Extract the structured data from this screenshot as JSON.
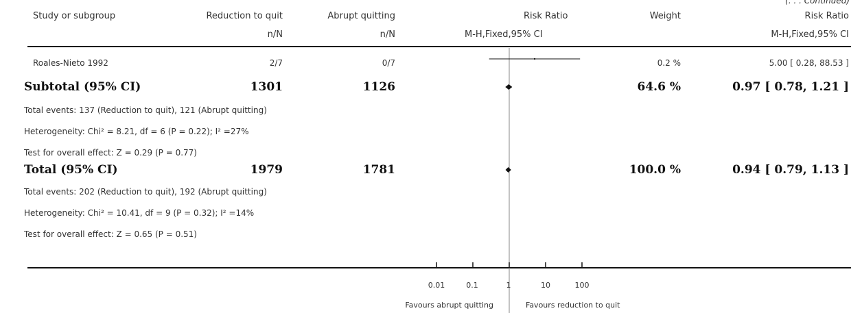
{
  "continued": "(. . . Continued)",
  "header": {
    "study": "Study or subgroup",
    "group1": "Reduction to quit",
    "group2": "Abrupt quitting",
    "risk_ratio": "Risk Ratio",
    "weight": "Weight",
    "risk_ratio2": "Risk Ratio",
    "n1": "n/N",
    "n2": "n/N",
    "method": "M-H,Fixed,95% CI",
    "method2": "M-H,Fixed,95% CI"
  },
  "studies": [
    {
      "name": "Roales-Nieto 1992",
      "g1": "2/7",
      "g2": "0/7",
      "weight": "0.2 %",
      "ci_text": "5.00 [ 0.28, 88.53 ]"
    }
  ],
  "subtotal": {
    "label": "Subtotal (95% CI)",
    "n1": "1301",
    "n2": "1126",
    "weight": "64.6 %",
    "ci_text": "0.97 [ 0.78, 1.21 ]",
    "events": "Total events: 137 (Reduction to quit), 121 (Abrupt quitting)",
    "heterogeneity": "Heterogeneity: Chi² = 8.21, df = 6 (P = 0.22); I² =27%",
    "overall": "Test for overall effect: Z = 0.29 (P = 0.77)"
  },
  "total": {
    "label": "Total (95% CI)",
    "n1": "1979",
    "n2": "1781",
    "weight": "100.0 %",
    "ci_text": "0.94 [ 0.79, 1.13 ]",
    "events": "Total events: 202 (Reduction to quit), 192 (Abrupt quitting)",
    "heterogeneity": "Heterogeneity: Chi² = 10.41, df = 9 (P = 0.32); I² =14%",
    "overall": "Test for overall effect: Z = 0.65 (P = 0.51)"
  },
  "axis": {
    "ticks": [
      "0.01",
      "0.1",
      "1",
      "10",
      "100"
    ],
    "favours_left": "Favours abrupt quitting",
    "favours_right": "Favours reduction to quit"
  },
  "chart_data": {
    "type": "scatter",
    "scale": "log",
    "xlim": [
      0.01,
      100
    ],
    "reference_line": 1,
    "tick_values": [
      0.01,
      0.1,
      1,
      10,
      100
    ],
    "estimates": [
      {
        "label": "Roales-Nieto 1992",
        "rr": 5.0,
        "lo": 0.28,
        "hi": 88.53,
        "marker": "square"
      },
      {
        "label": "Subtotal (95% CI)",
        "rr": 0.97,
        "lo": 0.78,
        "hi": 1.21,
        "marker": "diamond"
      },
      {
        "label": "Total (95% CI)",
        "rr": 0.94,
        "lo": 0.79,
        "hi": 1.13,
        "marker": "diamond"
      }
    ]
  }
}
